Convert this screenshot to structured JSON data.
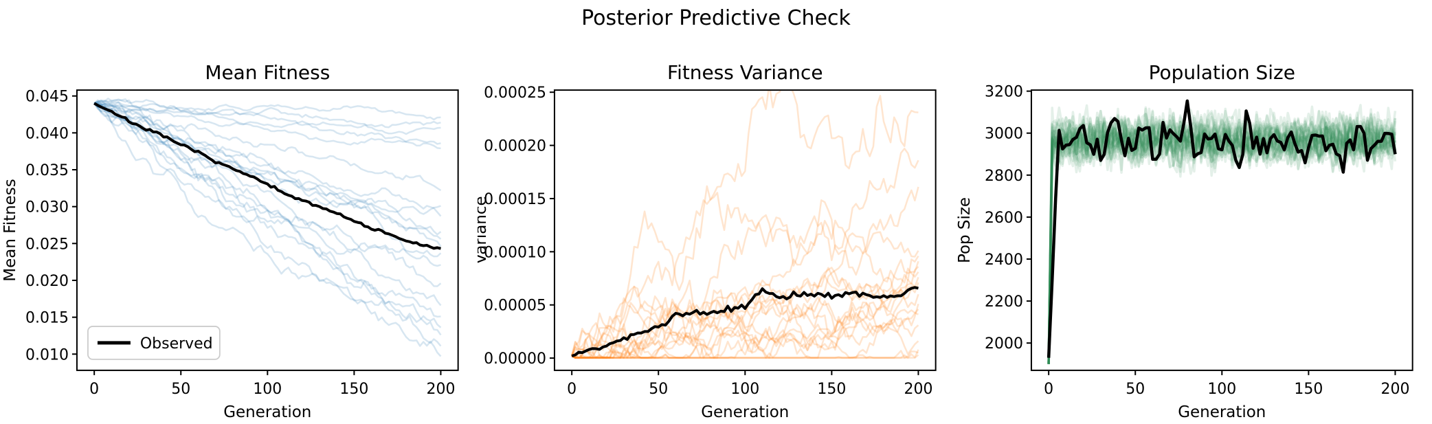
{
  "suptitle": "Posterior Predictive Check",
  "figure_bg": "#ffffff",
  "chart_data": [
    {
      "type": "line",
      "title": "Mean Fitness",
      "xlabel": "Generation",
      "ylabel": "Mean Fitness",
      "xlim": [
        -10,
        210
      ],
      "ylim": [
        0.0078,
        0.0458
      ],
      "grid": false,
      "xticks": {
        "values": [
          0,
          50,
          100,
          150,
          200
        ],
        "labels": [
          "0",
          "50",
          "100",
          "150",
          "200"
        ]
      },
      "yticks": {
        "values": [
          0.01,
          0.015,
          0.02,
          0.025,
          0.03,
          0.035,
          0.04,
          0.045
        ],
        "labels": [
          "0.010",
          "0.015",
          "0.020",
          "0.025",
          "0.030",
          "0.035",
          "0.040",
          "0.045"
        ]
      },
      "legend": {
        "label": "Observed",
        "position": "lower left"
      },
      "samples": {
        "name": "posterior-sample-lines",
        "mode": "walk",
        "color": "#1f77b4",
        "opacity": 0.18,
        "linewidth": 2.5,
        "seed": 101,
        "start": 0.044,
        "noise": 0.00045,
        "ends": [
          0.0421,
          0.0414,
          0.0407,
          0.0386,
          0.0379,
          0.0322,
          0.0301,
          0.0287,
          0.0266,
          0.0256,
          0.0246,
          0.0237,
          0.0221,
          0.0196,
          0.0166,
          0.0151,
          0.0136,
          0.0126,
          0.0111,
          0.0097
        ]
      },
      "observed": {
        "name": "observed-line",
        "color": "#000000",
        "linewidth": 4,
        "seed": 7,
        "noise": 0.0001,
        "x": [
          0,
          10,
          20,
          30,
          40,
          50,
          60,
          70,
          80,
          90,
          100,
          110,
          120,
          130,
          140,
          150,
          160,
          170,
          180,
          190,
          200
        ],
        "y": [
          0.044,
          0.0429,
          0.0416,
          0.0405,
          0.0395,
          0.0384,
          0.0373,
          0.0362,
          0.0351,
          0.0341,
          0.033,
          0.0317,
          0.0308,
          0.03,
          0.0291,
          0.0281,
          0.027,
          0.0263,
          0.0253,
          0.0248,
          0.0242
        ]
      }
    },
    {
      "type": "line",
      "title": "Fitness Variance",
      "xlabel": "Generation",
      "ylabel": "Variance",
      "xlim": [
        -10,
        210
      ],
      "ylim": [
        -1.15e-05,
        0.000252
      ],
      "grid": false,
      "xticks": {
        "values": [
          0,
          50,
          100,
          150,
          200
        ],
        "labels": [
          "0",
          "50",
          "100",
          "150",
          "200"
        ]
      },
      "yticks": {
        "values": [
          0.0,
          5e-05,
          0.0001,
          0.00015,
          0.0002,
          0.00025
        ],
        "labels": [
          "0.00000",
          "0.00005",
          "0.00010",
          "0.00015",
          "0.00020",
          "0.00025"
        ]
      },
      "samples": {
        "name": "posterior-sample-lines",
        "mode": "walk",
        "color": "#ff7f0e",
        "opacity": 0.2,
        "linewidth": 2.5,
        "seed": 202,
        "start": 2e-06,
        "noise": 1.3e-05,
        "clampMin": 3e-07,
        "ends": [
          0.000231,
          0.000186,
          0.000161,
          0.000101,
          9.6e-05,
          9.1e-05,
          8.6e-05,
          8.1e-05,
          7.6e-05,
          7.1e-05,
          6.6e-05,
          6e-05,
          5.1e-05,
          4.6e-05,
          4.1e-05,
          3.1e-05,
          1.6e-05,
          8e-06,
          5e-06,
          3e-06
        ]
      },
      "observed": {
        "name": "observed-line",
        "color": "#000000",
        "linewidth": 4,
        "seed": 9,
        "noise": 1.5e-06,
        "x": [
          0,
          10,
          20,
          30,
          40,
          50,
          60,
          70,
          80,
          90,
          100,
          110,
          120,
          130,
          140,
          150,
          160,
          170,
          180,
          190,
          200
        ],
        "y": [
          2e-06,
          7e-06,
          1.2e-05,
          1.7e-05,
          2.3e-05,
          3e-05,
          4e-05,
          4.1e-05,
          4.3e-05,
          4.6e-05,
          4.8e-05,
          6.4e-05,
          5.6e-05,
          5.9e-05,
          6.1e-05,
          5.7e-05,
          6.2e-05,
          5.9e-05,
          5.7e-05,
          5.9e-05,
          6.5e-05
        ]
      }
    },
    {
      "type": "line",
      "title": "Population Size",
      "xlabel": "Generation",
      "ylabel": "Pop Size",
      "xlim": [
        -10,
        210
      ],
      "ylim": [
        1870,
        3205
      ],
      "grid": false,
      "xticks": {
        "values": [
          0,
          50,
          100,
          150,
          200
        ],
        "labels": [
          "0",
          "50",
          "100",
          "150",
          "200"
        ]
      },
      "yticks": {
        "values": [
          2000,
          2200,
          2400,
          2600,
          2800,
          3000,
          3200
        ],
        "labels": [
          "2000",
          "2200",
          "2400",
          "2600",
          "2800",
          "3000",
          "3200"
        ]
      },
      "samples": {
        "name": "posterior-sample-lines",
        "mode": "band",
        "color": "#2e8b57",
        "opacity": 0.13,
        "linewidth": 3.5,
        "seed": 303,
        "count": 30,
        "start": 1900,
        "mean": 2965,
        "sigma": 58
      },
      "observed": {
        "name": "observed-line",
        "color": "#000000",
        "linewidth": 4.5,
        "seed": 13,
        "noise": 30,
        "x": [
          0,
          5,
          10,
          15,
          20,
          25,
          30,
          35,
          40,
          45,
          50,
          55,
          60,
          65,
          70,
          75,
          80,
          85,
          90,
          95,
          100,
          105,
          110,
          115,
          120,
          125,
          130,
          135,
          140,
          145,
          150,
          155,
          160,
          165,
          170,
          175,
          180,
          185,
          190,
          195,
          200
        ],
        "y": [
          1930,
          2975,
          2945,
          3005,
          3060,
          2950,
          2905,
          2990,
          3040,
          2915,
          2960,
          3050,
          2890,
          2970,
          3010,
          2930,
          3120,
          2855,
          2960,
          3000,
          2920,
          2985,
          2870,
          3060,
          2940,
          2900,
          2995,
          2930,
          3010,
          2880,
          2950,
          3020,
          2900,
          2960,
          2855,
          2980,
          3030,
          2910,
          2940,
          2990,
          2925
        ]
      }
    }
  ]
}
